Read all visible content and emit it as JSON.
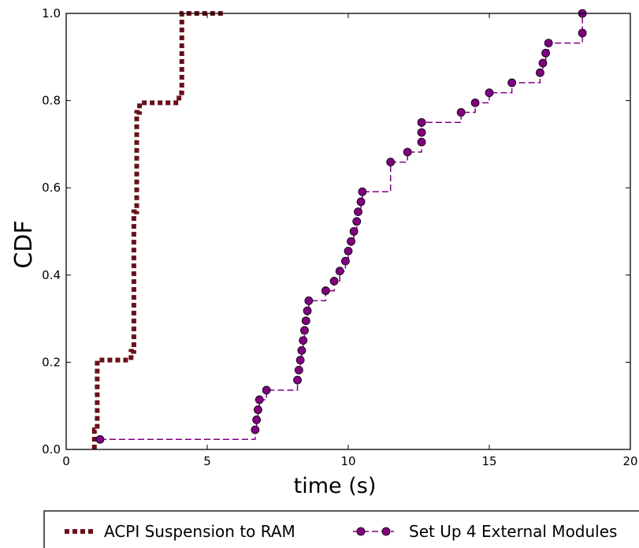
{
  "chart_data": {
    "type": "line",
    "title": "",
    "xlabel": "time (s)",
    "ylabel": "CDF",
    "xlim": [
      0,
      20
    ],
    "ylim": [
      0,
      1.0
    ],
    "xticks": [
      "0",
      "5",
      "10",
      "15",
      "20"
    ],
    "yticks": [
      "0.0",
      "0.2",
      "0.4",
      "0.6",
      "0.8",
      "1.0"
    ],
    "grid": false,
    "legend_position": "bottom, outside plot",
    "series": [
      {
        "name": "ACPI Suspension to RAM",
        "style": "dotted step",
        "color": "#6b0f1a",
        "x": [
          1.0,
          1.0,
          1.1,
          2.3,
          2.4,
          2.5,
          2.6,
          3.9,
          4.0,
          4.1,
          5.6
        ],
        "y": [
          0.0,
          0.045,
          0.205,
          0.225,
          0.545,
          0.773,
          0.795,
          0.795,
          0.818,
          1.0,
          1.0
        ]
      },
      {
        "name": "Set Up 4 External Modules",
        "style": "dashed step with circle markers",
        "color": "#800080",
        "x": [
          1.2,
          6.7,
          6.75,
          6.8,
          6.85,
          7.1,
          8.2,
          8.25,
          8.3,
          8.35,
          8.4,
          8.45,
          8.5,
          8.55,
          8.6,
          9.2,
          9.5,
          9.7,
          9.9,
          10.0,
          10.1,
          10.2,
          10.3,
          10.35,
          10.45,
          10.5,
          11.5,
          12.1,
          12.6,
          12.6,
          12.6,
          14.0,
          14.5,
          15.0,
          15.8,
          16.8,
          16.9,
          17.0,
          17.1,
          18.3,
          18.3
        ],
        "y": [
          0.023,
          0.045,
          0.068,
          0.091,
          0.114,
          0.136,
          0.159,
          0.182,
          0.205,
          0.227,
          0.25,
          0.273,
          0.295,
          0.318,
          0.341,
          0.364,
          0.386,
          0.409,
          0.432,
          0.455,
          0.477,
          0.5,
          0.523,
          0.545,
          0.568,
          0.591,
          0.659,
          0.682,
          0.705,
          0.727,
          0.75,
          0.773,
          0.795,
          0.818,
          0.841,
          0.864,
          0.886,
          0.909,
          0.932,
          0.955,
          1.0
        ]
      }
    ]
  },
  "legend": {
    "items": [
      {
        "label": "ACPI Suspension to RAM"
      },
      {
        "label": "Set Up 4 External Modules"
      }
    ]
  }
}
